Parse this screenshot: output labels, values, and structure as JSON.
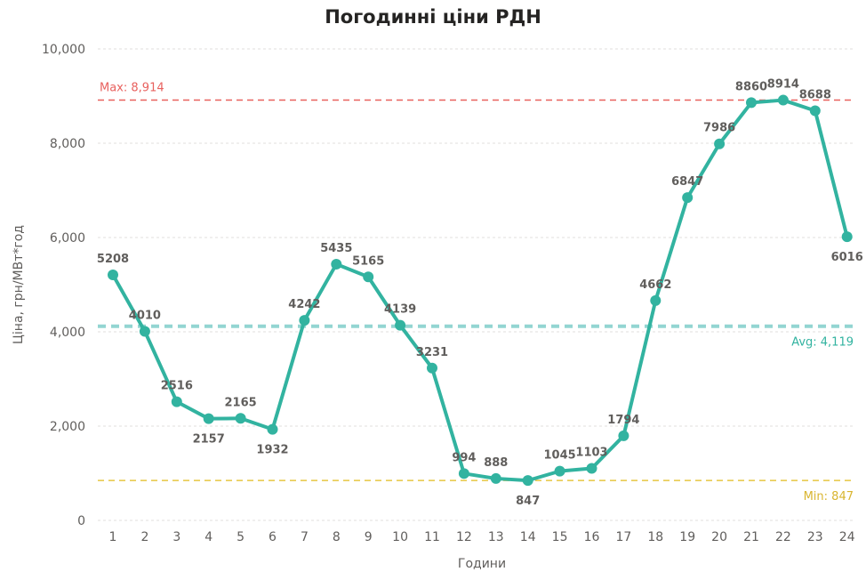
{
  "chart_data": {
    "type": "line",
    "title": "Погодинні ціни РДН",
    "xlabel": "Години",
    "ylabel": "Ціна, грн/МВт*год",
    "x": [
      1,
      2,
      3,
      4,
      5,
      6,
      7,
      8,
      9,
      10,
      11,
      12,
      13,
      14,
      15,
      16,
      17,
      18,
      19,
      20,
      21,
      22,
      23,
      24
    ],
    "series": [
      {
        "values": [
          5208,
          4010,
          2516,
          2157,
          2165,
          1932,
          4242,
          5435,
          5165,
          4139,
          3231,
          994,
          888,
          847,
          1045,
          1103,
          1794,
          4662,
          6847,
          7986,
          8860,
          8914,
          8688,
          6016
        ]
      }
    ],
    "ylim": [
      0,
      10000
    ],
    "yticks": [
      0,
      2000,
      4000,
      6000,
      8000,
      10000
    ],
    "ytick_labels": [
      "0",
      "2,000",
      "4,000",
      "6,000",
      "8,000",
      "10,000"
    ],
    "grid": true,
    "reference_lines": [
      {
        "label": "Max: 8,914",
        "value": 8914,
        "color": "#e8615e"
      },
      {
        "label": "Avg: 4,119",
        "value": 4119,
        "color": "#93d5d2"
      },
      {
        "label": "Min: 847",
        "value": 847,
        "color": "#e6c642"
      }
    ],
    "colors": {
      "line": "#32b3a0",
      "marker": "#32b3a0",
      "grid": "#e1dfdd",
      "avg_text": "#32b3a0",
      "max_text": "#e8615e",
      "min_text": "#d9b530"
    }
  }
}
